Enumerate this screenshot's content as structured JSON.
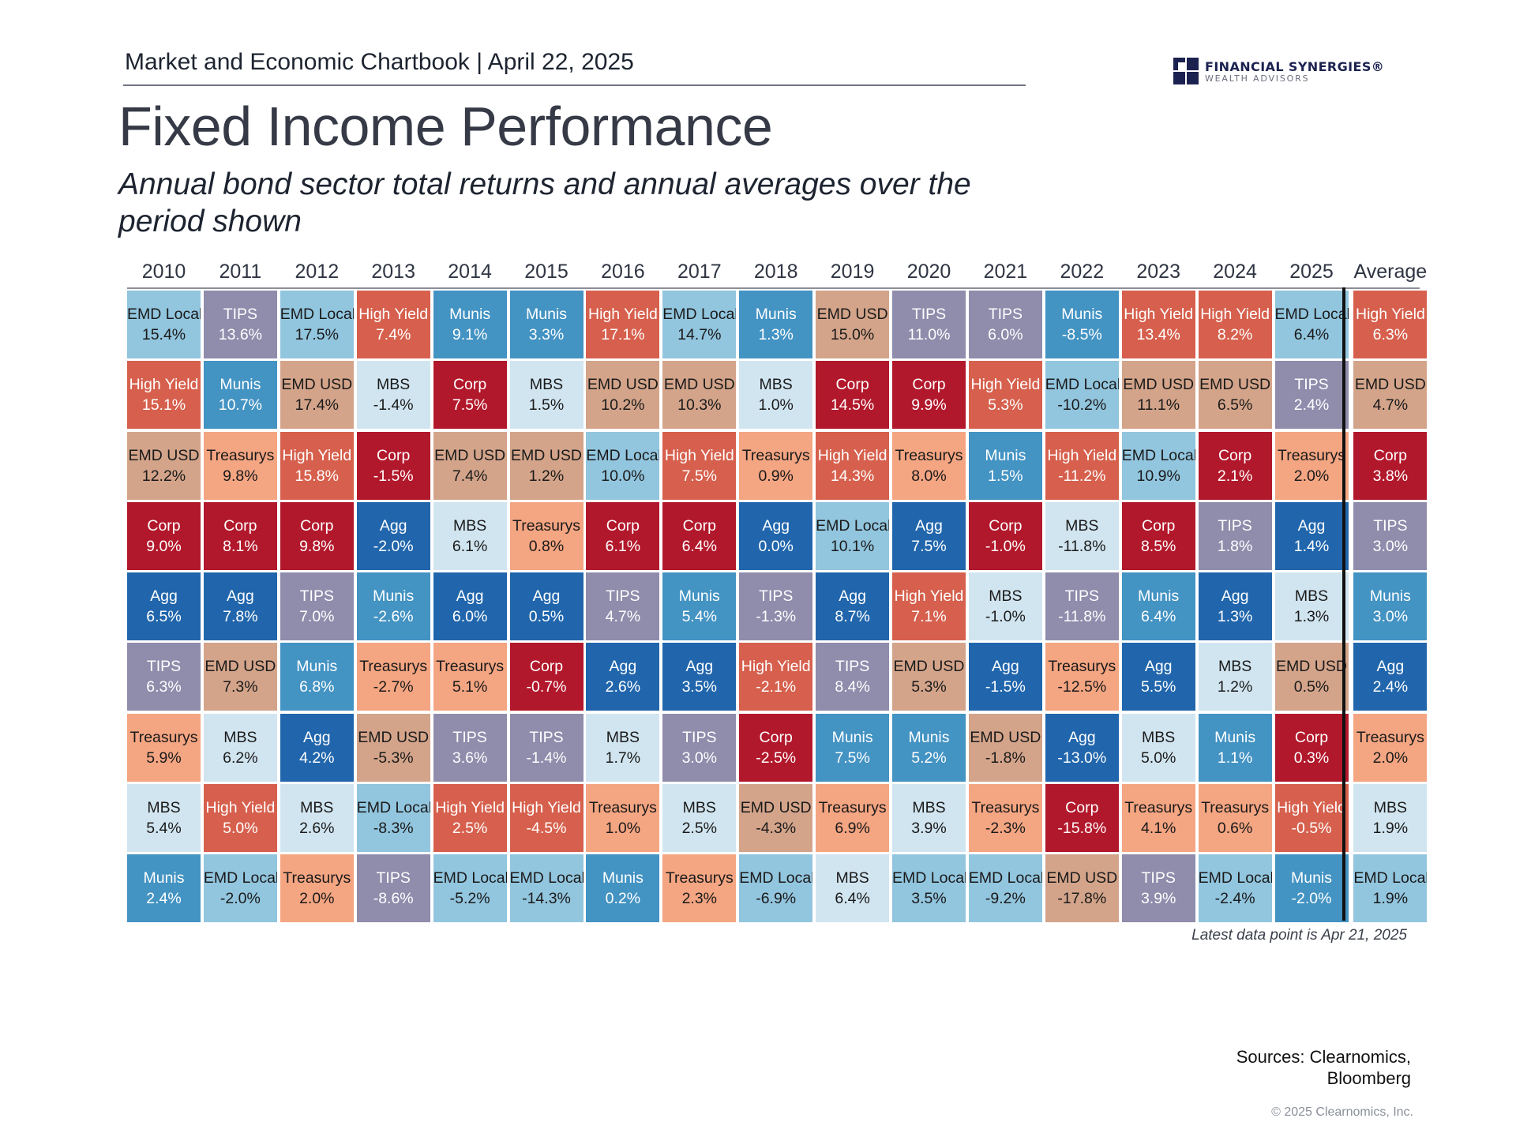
{
  "header": {
    "chartbook_label": "Market and Economic Chartbook | April 22, 2025",
    "title": "Fixed Income Performance",
    "subtitle": "Annual bond sector total returns and annual averages over the period shown"
  },
  "logo": {
    "name": "FINANCIAL SYNERGIES®",
    "tagline": "WEALTH ADVISORS",
    "mark_colors": [
      "#1c2250",
      "#1c2250",
      "#1c2250",
      "#1c2250"
    ]
  },
  "colors": {
    "EMD Local": {
      "bg": "#92c5de",
      "text": "#1a1a1a"
    },
    "TIPS": {
      "bg": "#8f8cac",
      "text": "#ffffff"
    },
    "High Yield": {
      "bg": "#d6604d",
      "text": "#ffffff"
    },
    "Munis": {
      "bg": "#4393c3",
      "text": "#ffffff"
    },
    "EMD USD": {
      "bg": "#d3a48a",
      "text": "#1a1a1a"
    },
    "MBS": {
      "bg": "#d1e5f0",
      "text": "#1a1a1a"
    },
    "Corp": {
      "bg": "#b2182b",
      "text": "#ffffff"
    },
    "Treasurys": {
      "bg": "#f4a582",
      "text": "#1a1a1a"
    },
    "Agg": {
      "bg": "#2166ac",
      "text": "#ffffff"
    }
  },
  "chart_data": {
    "type": "table",
    "title": "Fixed Income Performance",
    "subtitle": "Annual bond sector total returns and annual averages over the period shown",
    "columns": [
      "2010",
      "2011",
      "2012",
      "2013",
      "2014",
      "2015",
      "2016",
      "2017",
      "2018",
      "2019",
      "2020",
      "2021",
      "2022",
      "2023",
      "2024",
      "2025",
      "Average"
    ],
    "rankings": [
      [
        [
          "EMD Local",
          "15.4%"
        ],
        [
          "High Yield",
          "15.1%"
        ],
        [
          "EMD USD",
          "12.2%"
        ],
        [
          "Corp",
          "9.0%"
        ],
        [
          "Agg",
          "6.5%"
        ],
        [
          "TIPS",
          "6.3%"
        ],
        [
          "Treasurys",
          "5.9%"
        ],
        [
          "MBS",
          "5.4%"
        ],
        [
          "Munis",
          "2.4%"
        ]
      ],
      [
        [
          "TIPS",
          "13.6%"
        ],
        [
          "Munis",
          "10.7%"
        ],
        [
          "Treasurys",
          "9.8%"
        ],
        [
          "Corp",
          "8.1%"
        ],
        [
          "Agg",
          "7.8%"
        ],
        [
          "EMD USD",
          "7.3%"
        ],
        [
          "MBS",
          "6.2%"
        ],
        [
          "High Yield",
          "5.0%"
        ],
        [
          "EMD Local",
          "-2.0%"
        ]
      ],
      [
        [
          "EMD Local",
          "17.5%"
        ],
        [
          "EMD USD",
          "17.4%"
        ],
        [
          "High Yield",
          "15.8%"
        ],
        [
          "Corp",
          "9.8%"
        ],
        [
          "TIPS",
          "7.0%"
        ],
        [
          "Munis",
          "6.8%"
        ],
        [
          "Agg",
          "4.2%"
        ],
        [
          "MBS",
          "2.6%"
        ],
        [
          "Treasurys",
          "2.0%"
        ]
      ],
      [
        [
          "High Yield",
          "7.4%"
        ],
        [
          "MBS",
          "-1.4%"
        ],
        [
          "Corp",
          "-1.5%"
        ],
        [
          "Agg",
          "-2.0%"
        ],
        [
          "Munis",
          "-2.6%"
        ],
        [
          "Treasurys",
          "-2.7%"
        ],
        [
          "EMD USD",
          "-5.3%"
        ],
        [
          "EMD Local",
          "-8.3%"
        ],
        [
          "TIPS",
          "-8.6%"
        ]
      ],
      [
        [
          "Munis",
          "9.1%"
        ],
        [
          "Corp",
          "7.5%"
        ],
        [
          "EMD USD",
          "7.4%"
        ],
        [
          "MBS",
          "6.1%"
        ],
        [
          "Agg",
          "6.0%"
        ],
        [
          "Treasurys",
          "5.1%"
        ],
        [
          "TIPS",
          "3.6%"
        ],
        [
          "High Yield",
          "2.5%"
        ],
        [
          "EMD Local",
          "-5.2%"
        ]
      ],
      [
        [
          "Munis",
          "3.3%"
        ],
        [
          "MBS",
          "1.5%"
        ],
        [
          "EMD USD",
          "1.2%"
        ],
        [
          "Treasurys",
          "0.8%"
        ],
        [
          "Agg",
          "0.5%"
        ],
        [
          "Corp",
          "-0.7%"
        ],
        [
          "TIPS",
          "-1.4%"
        ],
        [
          "High Yield",
          "-4.5%"
        ],
        [
          "EMD Local",
          "-14.3%"
        ]
      ],
      [
        [
          "High Yield",
          "17.1%"
        ],
        [
          "EMD USD",
          "10.2%"
        ],
        [
          "EMD Local",
          "10.0%"
        ],
        [
          "Corp",
          "6.1%"
        ],
        [
          "TIPS",
          "4.7%"
        ],
        [
          "Agg",
          "2.6%"
        ],
        [
          "MBS",
          "1.7%"
        ],
        [
          "Treasurys",
          "1.0%"
        ],
        [
          "Munis",
          "0.2%"
        ]
      ],
      [
        [
          "EMD Local",
          "14.7%"
        ],
        [
          "EMD USD",
          "10.3%"
        ],
        [
          "High Yield",
          "7.5%"
        ],
        [
          "Corp",
          "6.4%"
        ],
        [
          "Munis",
          "5.4%"
        ],
        [
          "Agg",
          "3.5%"
        ],
        [
          "TIPS",
          "3.0%"
        ],
        [
          "MBS",
          "2.5%"
        ],
        [
          "Treasurys",
          "2.3%"
        ]
      ],
      [
        [
          "Munis",
          "1.3%"
        ],
        [
          "MBS",
          "1.0%"
        ],
        [
          "Treasurys",
          "0.9%"
        ],
        [
          "Agg",
          "0.0%"
        ],
        [
          "TIPS",
          "-1.3%"
        ],
        [
          "High Yield",
          "-2.1%"
        ],
        [
          "Corp",
          "-2.5%"
        ],
        [
          "EMD USD",
          "-4.3%"
        ],
        [
          "EMD Local",
          "-6.9%"
        ]
      ],
      [
        [
          "EMD USD",
          "15.0%"
        ],
        [
          "Corp",
          "14.5%"
        ],
        [
          "High Yield",
          "14.3%"
        ],
        [
          "EMD Local",
          "10.1%"
        ],
        [
          "Agg",
          "8.7%"
        ],
        [
          "TIPS",
          "8.4%"
        ],
        [
          "Munis",
          "7.5%"
        ],
        [
          "Treasurys",
          "6.9%"
        ],
        [
          "MBS",
          "6.4%"
        ]
      ],
      [
        [
          "TIPS",
          "11.0%"
        ],
        [
          "Corp",
          "9.9%"
        ],
        [
          "Treasurys",
          "8.0%"
        ],
        [
          "Agg",
          "7.5%"
        ],
        [
          "High Yield",
          "7.1%"
        ],
        [
          "EMD USD",
          "5.3%"
        ],
        [
          "Munis",
          "5.2%"
        ],
        [
          "MBS",
          "3.9%"
        ],
        [
          "EMD Local",
          "3.5%"
        ]
      ],
      [
        [
          "TIPS",
          "6.0%"
        ],
        [
          "High Yield",
          "5.3%"
        ],
        [
          "Munis",
          "1.5%"
        ],
        [
          "Corp",
          "-1.0%"
        ],
        [
          "MBS",
          "-1.0%"
        ],
        [
          "Agg",
          "-1.5%"
        ],
        [
          "EMD USD",
          "-1.8%"
        ],
        [
          "Treasurys",
          "-2.3%"
        ],
        [
          "EMD Local",
          "-9.2%"
        ]
      ],
      [
        [
          "Munis",
          "-8.5%"
        ],
        [
          "EMD Local",
          "-10.2%"
        ],
        [
          "High Yield",
          "-11.2%"
        ],
        [
          "MBS",
          "-11.8%"
        ],
        [
          "TIPS",
          "-11.8%"
        ],
        [
          "Treasurys",
          "-12.5%"
        ],
        [
          "Agg",
          "-13.0%"
        ],
        [
          "Corp",
          "-15.8%"
        ],
        [
          "EMD USD",
          "-17.8%"
        ]
      ],
      [
        [
          "High Yield",
          "13.4%"
        ],
        [
          "EMD USD",
          "11.1%"
        ],
        [
          "EMD Local",
          "10.9%"
        ],
        [
          "Corp",
          "8.5%"
        ],
        [
          "Munis",
          "6.4%"
        ],
        [
          "Agg",
          "5.5%"
        ],
        [
          "MBS",
          "5.0%"
        ],
        [
          "Treasurys",
          "4.1%"
        ],
        [
          "TIPS",
          "3.9%"
        ]
      ],
      [
        [
          "High Yield",
          "8.2%"
        ],
        [
          "EMD USD",
          "6.5%"
        ],
        [
          "Corp",
          "2.1%"
        ],
        [
          "TIPS",
          "1.8%"
        ],
        [
          "Agg",
          "1.3%"
        ],
        [
          "MBS",
          "1.2%"
        ],
        [
          "Munis",
          "1.1%"
        ],
        [
          "Treasurys",
          "0.6%"
        ],
        [
          "EMD Local",
          "-2.4%"
        ]
      ],
      [
        [
          "EMD Local",
          "6.4%"
        ],
        [
          "TIPS",
          "2.4%"
        ],
        [
          "Treasurys",
          "2.0%"
        ],
        [
          "Agg",
          "1.4%"
        ],
        [
          "MBS",
          "1.3%"
        ],
        [
          "EMD USD",
          "0.5%"
        ],
        [
          "Corp",
          "0.3%"
        ],
        [
          "High Yield",
          "-0.5%"
        ],
        [
          "Munis",
          "-2.0%"
        ]
      ],
      [
        [
          "High Yield",
          "6.3%"
        ],
        [
          "EMD USD",
          "4.7%"
        ],
        [
          "Corp",
          "3.8%"
        ],
        [
          "TIPS",
          "3.0%"
        ],
        [
          "Munis",
          "3.0%"
        ],
        [
          "Agg",
          "2.4%"
        ],
        [
          "Treasurys",
          "2.0%"
        ],
        [
          "MBS",
          "1.9%"
        ],
        [
          "EMD Local",
          "1.9%"
        ]
      ]
    ]
  },
  "footer": {
    "latest_note": "Latest data point is Apr 21, 2025",
    "sources_line1": "Sources: Clearnomics,",
    "sources_line2": "Bloomberg",
    "copyright": "© 2025 Clearnomics, Inc."
  }
}
